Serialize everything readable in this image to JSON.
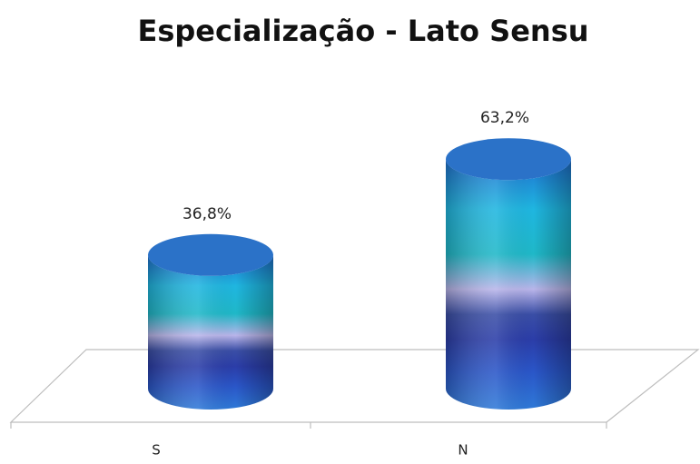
{
  "chart_data": {
    "type": "cylinder",
    "title": "Especialização - Lato Sensu",
    "categories": [
      "S",
      "N"
    ],
    "values": [
      36.8,
      63.2
    ],
    "value_labels": [
      "36,8%",
      "63,2%"
    ]
  }
}
